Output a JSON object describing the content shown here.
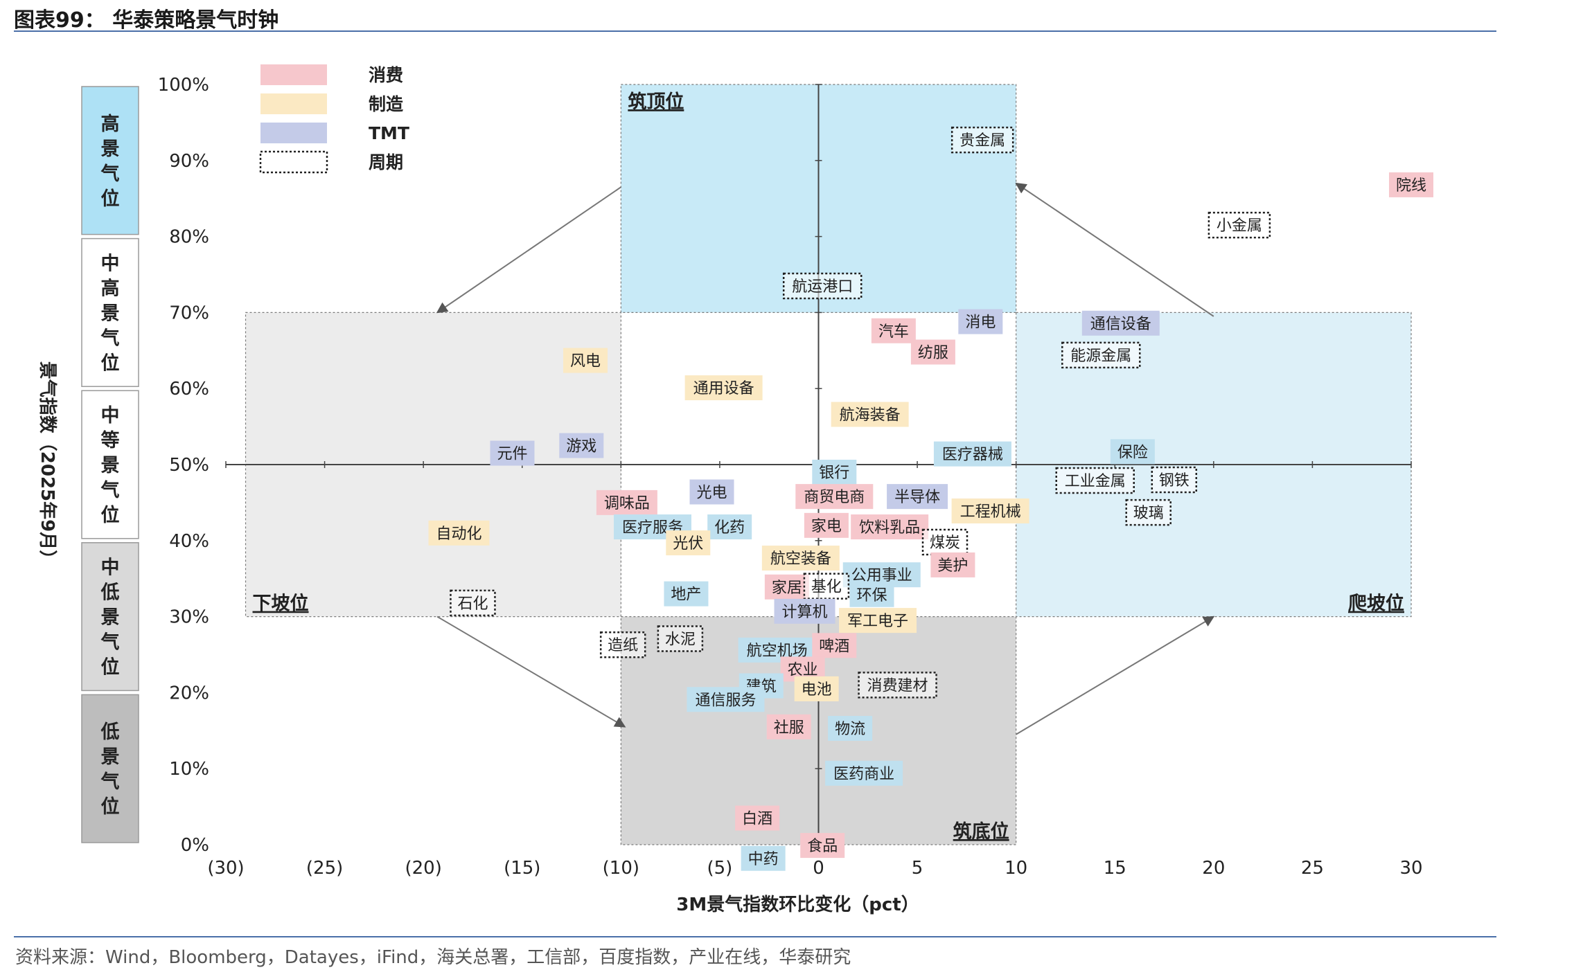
{
  "header": {
    "title": "图表99：  华泰策略景气时钟"
  },
  "footer": {
    "source": "资料来源：Wind，Bloomberg，Datayes，iFind，海关总署，工信部，百度指数，产业在线，华泰研究"
  },
  "colors": {
    "consumer": "#f6c7cc",
    "manufacturing": "#fbe9c3",
    "tmt": "#c4cbe8",
    "finance": "#bfe0ef",
    "upper_zone": "#c8eaf7",
    "right_zone": "#ddf0f8",
    "left_zone": "#ececec",
    "bottom_zone": "#d6d6d6",
    "level_high": "#aee1f5",
    "level_mid": "#ffffff",
    "level_low": "#bdbdbd",
    "level_lowmid": "#d9d9d9"
  },
  "chart_data": {
    "type": "scatter",
    "xlabel": "3M景气指数环比变化（pct）",
    "ylabel": "景气指数（2025年9月）",
    "xlim": [
      -30,
      30
    ],
    "ylim": [
      0,
      100
    ],
    "x_ticks": [
      "(30)",
      "(25)",
      "(20)",
      "(15)",
      "(10)",
      "(5)",
      "0",
      "5",
      "10",
      "15",
      "20",
      "25",
      "30"
    ],
    "y_ticks": [
      "0%",
      "10%",
      "20%",
      "30%",
      "40%",
      "50%",
      "60%",
      "70%",
      "80%",
      "90%",
      "100%"
    ],
    "legend": [
      {
        "label": "消费",
        "style": "consumer"
      },
      {
        "label": "制造",
        "style": "manufacturing"
      },
      {
        "label": "TMT",
        "style": "tmt"
      },
      {
        "label": "周期",
        "style": "cycle"
      }
    ],
    "zones": [
      {
        "label": "筑顶位",
        "x": [
          -10,
          10
        ],
        "y": [
          70,
          100
        ],
        "fill": "upper_zone"
      },
      {
        "label": "爬坡位",
        "x": [
          10,
          30
        ],
        "y": [
          30,
          70
        ],
        "fill": "right_zone"
      },
      {
        "label": "下坡位",
        "x": [
          -29,
          -10
        ],
        "y": [
          30,
          70
        ],
        "fill": "left_zone"
      },
      {
        "label": "筑底位",
        "x": [
          -10,
          10
        ],
        "y": [
          0,
          30
        ],
        "fill": "bottom_zone"
      }
    ],
    "levels": [
      {
        "label": "高景气位",
        "y": [
          80,
          100
        ],
        "fill": "level_high"
      },
      {
        "label": "中高景气位",
        "y": [
          60,
          80
        ],
        "fill": "level_mid"
      },
      {
        "label": "中等景气位",
        "y": [
          40,
          60
        ],
        "fill": "level_mid"
      },
      {
        "label": "中低景气位",
        "y": [
          20,
          40
        ],
        "fill": "level_lowmid"
      },
      {
        "label": "低景气位",
        "y": [
          0,
          20
        ],
        "fill": "level_low"
      }
    ],
    "points": [
      {
        "name": "贵金属",
        "x": 8.3,
        "y": 92.7,
        "cat": "cycle"
      },
      {
        "name": "院线",
        "x": 30.0,
        "y": 86.8,
        "cat": "consumer"
      },
      {
        "name": "小金属",
        "x": 21.3,
        "y": 81.5,
        "cat": "cycle"
      },
      {
        "name": "航运港口",
        "x": 0.2,
        "y": 73.5,
        "cat": "cycle"
      },
      {
        "name": "消电",
        "x": 8.2,
        "y": 68.8,
        "cat": "tmt"
      },
      {
        "name": "通信设备",
        "x": 15.3,
        "y": 68.6,
        "cat": "tmt"
      },
      {
        "name": "汽车",
        "x": 3.8,
        "y": 67.6,
        "cat": "consumer"
      },
      {
        "name": "能源金属",
        "x": 14.3,
        "y": 64.4,
        "cat": "cycle"
      },
      {
        "name": "纺服",
        "x": 5.8,
        "y": 64.8,
        "cat": "consumer"
      },
      {
        "name": "风电",
        "x": -11.8,
        "y": 63.7,
        "cat": "manufacturing"
      },
      {
        "name": "通用设备",
        "x": -4.8,
        "y": 60.1,
        "cat": "manufacturing"
      },
      {
        "name": "航海装备",
        "x": 2.6,
        "y": 56.6,
        "cat": "manufacturing"
      },
      {
        "name": "元件",
        "x": -15.5,
        "y": 51.5,
        "cat": "tmt"
      },
      {
        "name": "游戏",
        "x": -12.0,
        "y": 52.5,
        "cat": "tmt"
      },
      {
        "name": "医疗器械",
        "x": 7.8,
        "y": 51.4,
        "cat": "finance"
      },
      {
        "name": "保险",
        "x": 15.9,
        "y": 51.7,
        "cat": "finance"
      },
      {
        "name": "银行",
        "x": 0.8,
        "y": 49.0,
        "cat": "finance"
      },
      {
        "name": "工业金属",
        "x": 14.0,
        "y": 47.9,
        "cat": "cycle"
      },
      {
        "name": "钢铁",
        "x": 18.0,
        "y": 48.0,
        "cat": "cycle"
      },
      {
        "name": "光电",
        "x": -5.4,
        "y": 46.4,
        "cat": "tmt"
      },
      {
        "name": "商贸电商",
        "x": 0.8,
        "y": 45.8,
        "cat": "consumer"
      },
      {
        "name": "半导体",
        "x": 5.0,
        "y": 45.8,
        "cat": "tmt"
      },
      {
        "name": "调味品",
        "x": -9.7,
        "y": 45.0,
        "cat": "consumer"
      },
      {
        "name": "工程机械",
        "x": 8.7,
        "y": 43.9,
        "cat": "manufacturing"
      },
      {
        "name": "玻璃",
        "x": 16.7,
        "y": 43.7,
        "cat": "cycle"
      },
      {
        "name": "医疗服务",
        "x": -8.4,
        "y": 41.8,
        "cat": "finance"
      },
      {
        "name": "化药",
        "x": -4.5,
        "y": 41.8,
        "cat": "finance"
      },
      {
        "name": "家电",
        "x": 0.4,
        "y": 42.0,
        "cat": "consumer"
      },
      {
        "name": "饮料乳品",
        "x": 3.6,
        "y": 41.8,
        "cat": "consumer"
      },
      {
        "name": "自动化",
        "x": -18.2,
        "y": 41.0,
        "cat": "manufacturing"
      },
      {
        "name": "光伏",
        "x": -6.6,
        "y": 39.7,
        "cat": "manufacturing"
      },
      {
        "name": "煤炭",
        "x": 6.4,
        "y": 39.8,
        "cat": "cycle"
      },
      {
        "name": "航空装备",
        "x": -0.9,
        "y": 37.7,
        "cat": "manufacturing"
      },
      {
        "name": "美护",
        "x": 6.8,
        "y": 36.8,
        "cat": "consumer"
      },
      {
        "name": "公用事业",
        "x": 3.2,
        "y": 35.5,
        "cat": "finance"
      },
      {
        "name": "家居",
        "x": -1.6,
        "y": 33.9,
        "cat": "consumer"
      },
      {
        "name": "基化",
        "x": 0.4,
        "y": 34.0,
        "cat": "cycle"
      },
      {
        "name": "环保",
        "x": 2.7,
        "y": 32.9,
        "cat": "finance"
      },
      {
        "name": "地产",
        "x": -6.7,
        "y": 33.0,
        "cat": "finance"
      },
      {
        "name": "石化",
        "x": -17.5,
        "y": 31.8,
        "cat": "cycle"
      },
      {
        "name": "计算机",
        "x": -0.7,
        "y": 30.7,
        "cat": "tmt"
      },
      {
        "name": "军工电子",
        "x": 3.0,
        "y": 29.5,
        "cat": "manufacturing"
      },
      {
        "name": "造纸",
        "x": -9.9,
        "y": 26.3,
        "cat": "cycle"
      },
      {
        "name": "水泥",
        "x": -7.0,
        "y": 27.1,
        "cat": "cycle"
      },
      {
        "name": "航空机场",
        "x": -2.1,
        "y": 25.6,
        "cat": "finance"
      },
      {
        "name": "啤酒",
        "x": 0.8,
        "y": 26.2,
        "cat": "consumer"
      },
      {
        "name": "农业",
        "x": -0.8,
        "y": 23.1,
        "cat": "consumer"
      },
      {
        "name": "建筑",
        "x": -2.9,
        "y": 20.9,
        "cat": "finance"
      },
      {
        "name": "消费建材",
        "x": 4.0,
        "y": 21.0,
        "cat": "cycle"
      },
      {
        "name": "电池",
        "x": -0.1,
        "y": 20.5,
        "cat": "manufacturing"
      },
      {
        "name": "通信服务",
        "x": -4.7,
        "y": 19.1,
        "cat": "finance"
      },
      {
        "name": "社服",
        "x": -1.5,
        "y": 15.5,
        "cat": "consumer"
      },
      {
        "name": "物流",
        "x": 1.6,
        "y": 15.3,
        "cat": "finance"
      },
      {
        "name": "医药商业",
        "x": 2.3,
        "y": 9.4,
        "cat": "finance"
      },
      {
        "name": "白酒",
        "x": -3.1,
        "y": 3.5,
        "cat": "consumer"
      },
      {
        "name": "食品",
        "x": 0.2,
        "y": -0.1,
        "cat": "consumer"
      },
      {
        "name": "中药",
        "x": -2.8,
        "y": -1.8,
        "cat": "finance"
      }
    ]
  }
}
